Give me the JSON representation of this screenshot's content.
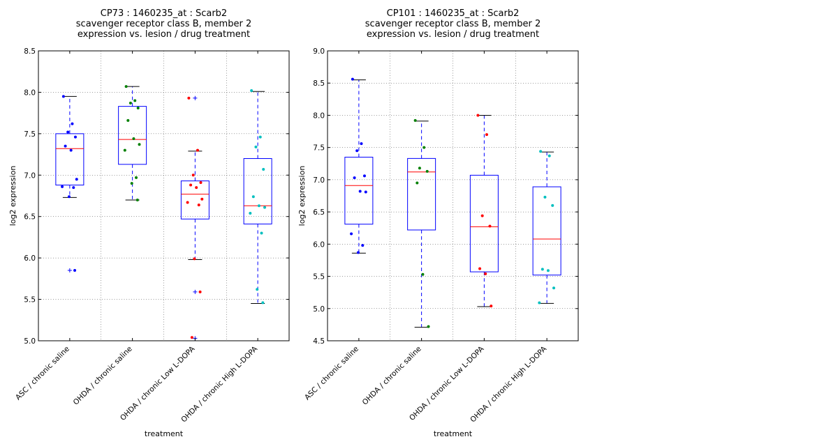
{
  "chart_data": [
    {
      "type": "box",
      "title_lines": [
        "CP73 : 1460235_at : Scarb2",
        "scavenger receptor class B, member 2",
        "expression vs. lesion / drug treatment"
      ],
      "xlabel": "treatment",
      "ylabel": "log2 expression",
      "ylim": [
        5.0,
        8.5
      ],
      "yticks": [
        "5.0",
        "5.5",
        "6.0",
        "6.5",
        "7.0",
        "7.5",
        "8.0",
        "8.5"
      ],
      "grid": true,
      "categories": [
        "ASC / chronic saline",
        "OHDA / chronic saline",
        "OHDA / chronic Low L-DOPA",
        "OHDA / chronic High L-DOPA"
      ],
      "boxes": [
        {
          "q1": 6.88,
          "median": 7.32,
          "q3": 7.5,
          "whislo": 6.73,
          "whishi": 7.95,
          "fliers": [
            5.85
          ],
          "color": "#0000ff",
          "points": [
            7.95,
            7.62,
            7.52,
            7.46,
            7.35,
            7.3,
            6.95,
            6.86,
            6.85,
            6.74,
            5.85
          ]
        },
        {
          "q1": 7.13,
          "median": 7.43,
          "q3": 7.83,
          "whislo": 6.7,
          "whishi": 8.07,
          "fliers": [],
          "color": "#008000",
          "points": [
            8.07,
            7.9,
            7.87,
            7.81,
            7.66,
            7.44,
            7.37,
            7.3,
            6.97,
            6.9,
            6.7
          ]
        },
        {
          "q1": 6.47,
          "median": 6.77,
          "q3": 6.93,
          "whislo": 5.98,
          "whishi": 7.29,
          "fliers": [
            7.93,
            5.59,
            5.03
          ],
          "color": "#ff0000",
          "points": [
            7.93,
            7.3,
            7.0,
            6.91,
            6.88,
            6.85,
            6.71,
            6.67,
            6.64,
            5.99,
            5.59,
            5.04
          ]
        },
        {
          "q1": 6.41,
          "median": 6.63,
          "q3": 7.2,
          "whislo": 5.45,
          "whishi": 8.01,
          "fliers": [],
          "color": "#00bfbf",
          "points": [
            8.02,
            7.46,
            7.34,
            7.07,
            6.74,
            6.63,
            6.61,
            6.54,
            6.3,
            5.62,
            5.46
          ]
        }
      ]
    },
    {
      "type": "box",
      "title_lines": [
        "CP101 : 1460235_at : Scarb2",
        "scavenger receptor class B, member 2",
        "expression vs. lesion / drug treatment"
      ],
      "xlabel": "treatment",
      "ylabel": "log2 expression",
      "ylim": [
        4.5,
        9.0
      ],
      "yticks": [
        "4.5",
        "5.0",
        "5.5",
        "6.0",
        "6.5",
        "7.0",
        "7.5",
        "8.0",
        "8.5",
        "9.0"
      ],
      "grid": true,
      "categories": [
        "ASC / chronic saline",
        "OHDA / chronic saline",
        "OHDA / chronic Low L-DOPA",
        "OHDA / chronic High L-DOPA"
      ],
      "boxes": [
        {
          "q1": 6.31,
          "median": 6.91,
          "q3": 7.35,
          "whislo": 5.86,
          "whishi": 8.55,
          "fliers": [],
          "color": "#0000ff",
          "points": [
            8.56,
            7.56,
            7.45,
            7.06,
            7.03,
            6.82,
            6.81,
            6.16,
            5.98,
            5.87
          ]
        },
        {
          "q1": 6.22,
          "median": 7.12,
          "q3": 7.33,
          "whislo": 4.71,
          "whishi": 7.91,
          "fliers": [],
          "color": "#008000",
          "points": [
            7.92,
            7.5,
            7.18,
            7.13,
            6.95,
            5.53,
            4.72
          ]
        },
        {
          "q1": 5.57,
          "median": 6.27,
          "q3": 7.07,
          "whislo": 5.03,
          "whishi": 8.0,
          "fliers": [],
          "color": "#ff0000",
          "points": [
            8.0,
            7.7,
            6.44,
            6.28,
            5.62,
            5.54,
            5.04
          ]
        },
        {
          "q1": 5.52,
          "median": 6.08,
          "q3": 6.89,
          "whislo": 5.08,
          "whishi": 7.43,
          "fliers": [],
          "color": "#00bfbf",
          "points": [
            7.44,
            7.37,
            6.73,
            6.6,
            5.61,
            5.59,
            5.32,
            5.09
          ]
        }
      ]
    }
  ]
}
